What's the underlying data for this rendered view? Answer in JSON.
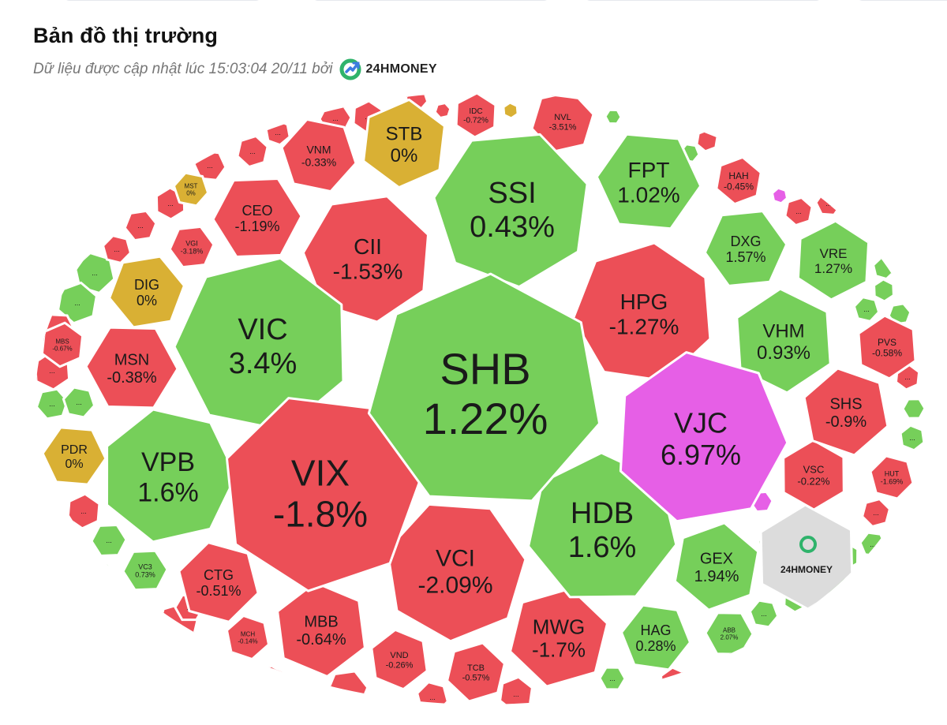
{
  "header": {
    "title": "Bản đồ thị trường",
    "subtitle": "Dữ liệu được cập nhật lúc 15:03:04 20/11 bởi",
    "brand": "24HMONEY",
    "brand_mark": "24hmoney-logo-icon"
  },
  "colors": {
    "up": "#76cf5a",
    "down": "#ec4f57",
    "flat": "#d9b034",
    "ceiling": "#e65fe6",
    "neutral": "#dcdcdc",
    "brand": "#2fb36b"
  },
  "chart_data": {
    "type": "treemap",
    "title": "Bản đồ thị trường",
    "shape": "ellipse-voronoi",
    "legend": "none",
    "items": [
      {
        "ticker": "SHB",
        "change": "1.22%",
        "status": "up"
      },
      {
        "ticker": "VJC",
        "change": "6.97%",
        "status": "ceiling"
      },
      {
        "ticker": "VIX",
        "change": "-1.8%",
        "status": "down"
      },
      {
        "ticker": "VIC",
        "change": "3.4%",
        "status": "up"
      },
      {
        "ticker": "SSI",
        "change": "0.43%",
        "status": "up"
      },
      {
        "ticker": "HDB",
        "change": "1.6%",
        "status": "up"
      },
      {
        "ticker": "VPB",
        "change": "1.6%",
        "status": "up"
      },
      {
        "ticker": "CII",
        "change": "-1.53%",
        "status": "down"
      },
      {
        "ticker": "HPG",
        "change": "-1.27%",
        "status": "down"
      },
      {
        "ticker": "VCI",
        "change": "-2.09%",
        "status": "down"
      },
      {
        "ticker": "FPT",
        "change": "1.02%",
        "status": "up"
      },
      {
        "ticker": "VHM",
        "change": "0.93%",
        "status": "up"
      },
      {
        "ticker": "STB",
        "change": "0%",
        "status": "flat"
      },
      {
        "ticker": "MWG",
        "change": "-1.7%",
        "status": "down"
      },
      {
        "ticker": "MSN",
        "change": "-0.38%",
        "status": "down"
      },
      {
        "ticker": "CEO",
        "change": "-1.19%",
        "status": "down"
      },
      {
        "ticker": "DXG",
        "change": "1.57%",
        "status": "up"
      },
      {
        "ticker": "VRE",
        "change": "1.27%",
        "status": "up"
      },
      {
        "ticker": "SHS",
        "change": "-0.9%",
        "status": "down"
      },
      {
        "ticker": "MBB",
        "change": "-0.64%",
        "status": "down"
      },
      {
        "ticker": "GEX",
        "change": "1.94%",
        "status": "up"
      },
      {
        "ticker": "HAG",
        "change": "0.28%",
        "status": "up"
      },
      {
        "ticker": "CTG",
        "change": "-0.51%",
        "status": "down"
      },
      {
        "ticker": "DIG",
        "change": "0%",
        "status": "flat"
      },
      {
        "ticker": "VNM",
        "change": "-0.33%",
        "status": "down"
      },
      {
        "ticker": "PDR",
        "change": "0%",
        "status": "flat"
      },
      {
        "ticker": "VSC",
        "change": "-0.22%",
        "status": "down"
      },
      {
        "ticker": "PVS",
        "change": "-0.58%",
        "status": "down"
      },
      {
        "ticker": "HAH",
        "change": "-0.45%",
        "status": "down"
      },
      {
        "ticker": "NVL",
        "change": "-3.51%",
        "status": "down"
      },
      {
        "ticker": "VND",
        "change": "-0.26%",
        "status": "down"
      },
      {
        "ticker": "TCB",
        "change": "-0.57%",
        "status": "down"
      },
      {
        "ticker": "IDC",
        "change": "-0.72%",
        "status": "down"
      },
      {
        "ticker": "VGI",
        "change": "-3.18%",
        "status": "down"
      },
      {
        "ticker": "HUT",
        "change": "-1.69%",
        "status": "down"
      },
      {
        "ticker": "MST",
        "change": "0%",
        "status": "flat"
      },
      {
        "ticker": "MBS",
        "change": "-0.67%",
        "status": "down"
      },
      {
        "ticker": "VC3",
        "change": "0.73%",
        "status": "up"
      },
      {
        "ticker": "MCH",
        "change": "-0.14%",
        "status": "down"
      },
      {
        "ticker": "ABB",
        "change": "2.07%",
        "status": "up"
      }
    ],
    "more_label": "...",
    "watermark": "24HMONEY"
  }
}
